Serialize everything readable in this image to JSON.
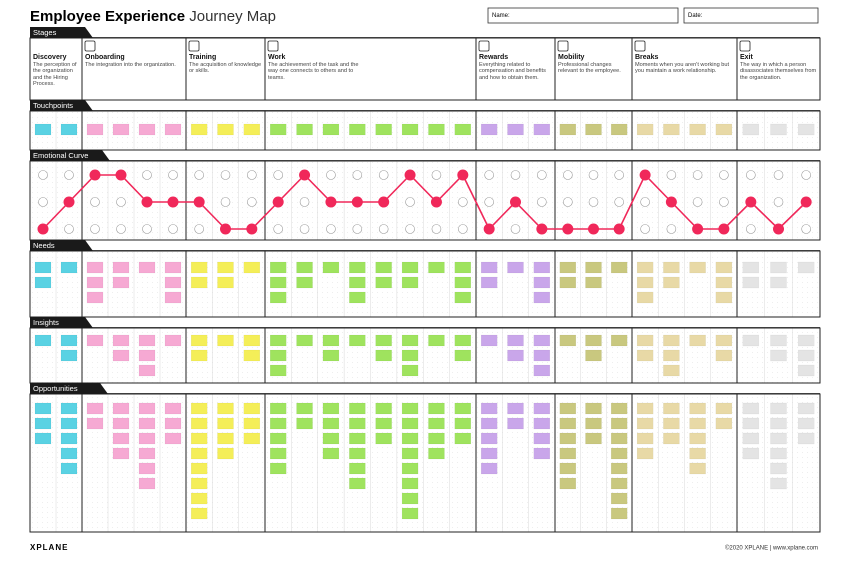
{
  "header": {
    "title_bold": "Employee Experience",
    "title_light": "Journey Map",
    "name_label": "Name:",
    "date_label": "Date:"
  },
  "sections": [
    "Stages",
    "Touchpoints",
    "Emotional Curve",
    "Needs",
    "Insights",
    "Opportunities"
  ],
  "stages": [
    {
      "name": "Discovery",
      "description": "The perception of the organization and the Hiring Process.",
      "color": "#5ad2e3"
    },
    {
      "name": "Onboarding",
      "description": "The integration into the organization.",
      "color": "#f6a9d3"
    },
    {
      "name": "Training",
      "description": "The acquisition of knowledge or skills.",
      "color": "#f4ee58"
    },
    {
      "name": "Work",
      "description": "The achievement of the task and the way one connects to others and to teams.",
      "color": "#9fe35e"
    },
    {
      "name": "Rewards",
      "description": "Everything related to compensation and benefits and how to obtain them.",
      "color": "#c9a6ea"
    },
    {
      "name": "Mobility",
      "description": "Professional changes relevant to the employee.",
      "color": "#c9c87f"
    },
    {
      "name": "Breaks",
      "description": "Moments when you aren't working but you maintain a work relationship.",
      "color": "#e8d9a6"
    },
    {
      "name": "Exit",
      "description": "The way in which a person disassociates themselves from the organization.",
      "color": "#e4e4e4"
    }
  ],
  "emotional_curve": {
    "color": "#f0285a",
    "levels": [
      1,
      2,
      3,
      3,
      2,
      2,
      2,
      1,
      1,
      2,
      3,
      2,
      2,
      2,
      3,
      2,
      3,
      1,
      2,
      1,
      1,
      1,
      1,
      3,
      2,
      1,
      1,
      2,
      1,
      2
    ]
  },
  "footer": {
    "brand": "XPLANE",
    "copyright": "©2020 XPLANE | www.xplane.com"
  }
}
